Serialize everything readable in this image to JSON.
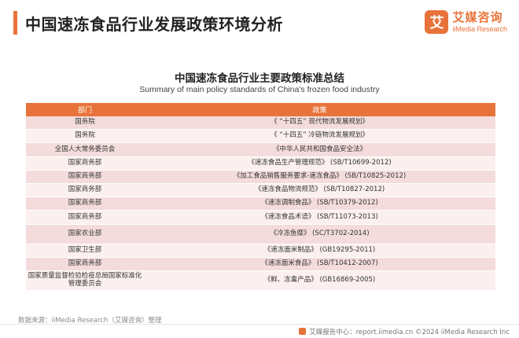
{
  "header": {
    "title": "中国速冻食品行业发展政策环境分析",
    "brand_mark": "艾",
    "brand_name": "艾媒咨询",
    "brand_sub": "iiMedia Research"
  },
  "table": {
    "title": "中国速冻食品行业主要政策标准总结",
    "subtitle": "Summary of main policy standards of China's frozen food industry",
    "columns": [
      "部门",
      "政策"
    ],
    "rows": [
      [
        "国务院",
        "《 “十四五” 现代物流发展规划》"
      ],
      [
        "国务院",
        "《 “十四五” 冷链物流发展规划》"
      ],
      [
        "全国人大常务委员会",
        "《中华人民共和国食品安全法》"
      ],
      [
        "国家商务部",
        "《速冻食品生产管理规范》 (SB/T10699-2012)"
      ],
      [
        "国家商务部",
        "《加工食品销售服务要求-速冻食品》 (SB/T10825-2012)"
      ],
      [
        "国家商务部",
        "《速冻食品物流规范》 (SB/T10827-2012)"
      ],
      [
        "国家商务部",
        "《速冻调制食品》 (SB/T10379-2012)"
      ],
      [
        "国家商务部",
        "《速冻食品术语》 (SB/T11073-2013)"
      ],
      [
        "国家农业部",
        "《冷冻鱼糜》 (SC/T3702-2014)"
      ],
      [
        "国家卫生部",
        "《速冻面米制品》 (GB19295-2011)"
      ],
      [
        "国家商务部",
        "《速冻面米食品》 (SB/T10412-2007)"
      ],
      [
        "国家质量监督检验检疫总局国家标准化管理委员会",
        "《鲜、冻禽产品》 (GB16869-2005)"
      ]
    ]
  },
  "source": "数据来源：iiMedia Research（艾媒咨询）整理",
  "footer": "艾媒报告中心：report.iimedia.cn ©2024 iiMedia Research Inc"
}
